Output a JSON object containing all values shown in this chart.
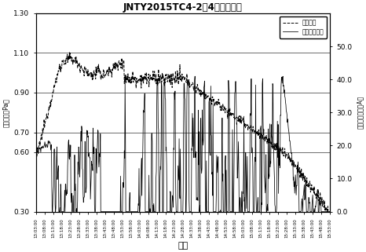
{
  "title": "JNTY2015TC4-2焉4炼工艺参数",
  "title_ascii": "JNTY2015TC4-2",
  "xlabel": "时间",
  "ylabel_left": "炉内真空（Pa）",
  "ylabel_right": "各枪电束加总（A）",
  "legend1": "炉内真空",
  "legend2": "各枪电束加总",
  "ylim_left": [
    0.3,
    1.3
  ],
  "ylim_right": [
    0.0,
    60.0
  ],
  "yticks_left": [
    0.3,
    0.6,
    0.7,
    0.9,
    1.1,
    1.3
  ],
  "yticks_right": [
    0.0,
    10.0,
    20.0,
    30.0,
    40.0,
    50.0
  ],
  "background_color": "#ffffff",
  "line1_color": "#000000",
  "line2_color": "#000000",
  "n_points": 800,
  "xtick_labels": [
    "13:03:00",
    "13:08:00",
    "13:13:00",
    "13:18:00",
    "13:23:00",
    "13:28:00",
    "13:33:00",
    "13:38:00",
    "13:43:00",
    "13:48:00",
    "13:53:00",
    "13:58:00",
    "14:03:00",
    "14:08:00",
    "14:13:00",
    "14:18:00",
    "14:23:00",
    "14:28:00",
    "14:33:00",
    "14:38:00",
    "14:43:00",
    "14:48:00",
    "14:53:00",
    "14:58:00",
    "15:03:00",
    "15:08:00",
    "15:13:00",
    "15:18:00",
    "15:23:00",
    "15:28:00",
    "15:33:00",
    "15:38:00",
    "15:43:00",
    "15:48:00",
    "15:53:00"
  ]
}
